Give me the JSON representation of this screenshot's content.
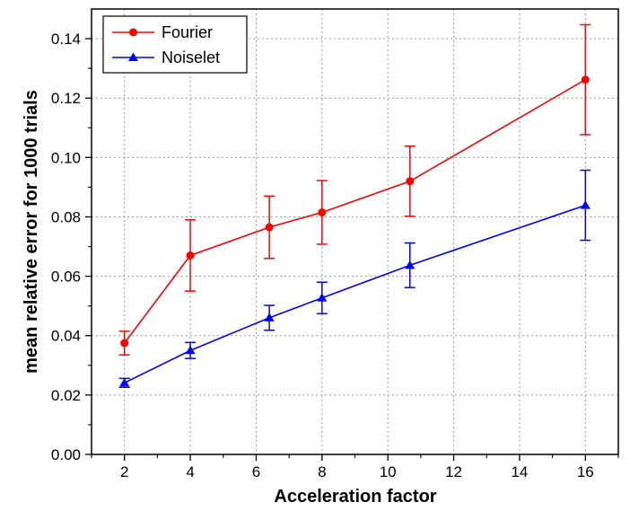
{
  "chart_data": {
    "type": "line",
    "title": "",
    "xlabel": "Acceleration factor",
    "ylabel": "mean relative error for 1000 trials",
    "xlim": [
      1,
      17
    ],
    "ylim": [
      0,
      0.15
    ],
    "x_ticks": [
      2,
      4,
      6,
      8,
      10,
      12,
      14,
      16
    ],
    "x_tick_labels": [
      "2",
      "4",
      "6",
      "8",
      "10",
      "12",
      "14",
      "16"
    ],
    "y_ticks": [
      0,
      0.02,
      0.04,
      0.06,
      0.08,
      0.1,
      0.12,
      0.14
    ],
    "y_tick_labels": [
      "0.00",
      "0.02",
      "0.04",
      "0.06",
      "0.08",
      "0.10",
      "0.12",
      "0.14"
    ],
    "grid": true,
    "legend_position": "top-left",
    "series": [
      {
        "name": "Fourier",
        "color": "#ff0000",
        "marker": "circle",
        "x": [
          2,
          4,
          6.4,
          8,
          10.67,
          16
        ],
        "y": [
          0.0375,
          0.067,
          0.0765,
          0.0815,
          0.092,
          0.1262
        ],
        "err": [
          0.004,
          0.012,
          0.0105,
          0.0107,
          0.0118,
          0.0185
        ]
      },
      {
        "name": "Noiselet",
        "color": "#0000ff",
        "marker": "triangle",
        "x": [
          2,
          4,
          6.4,
          8,
          10.67,
          16
        ],
        "y": [
          0.0241,
          0.035,
          0.046,
          0.0527,
          0.0637,
          0.0839
        ],
        "err": [
          0.0015,
          0.0027,
          0.0042,
          0.0053,
          0.0075,
          0.0118
        ]
      }
    ]
  }
}
